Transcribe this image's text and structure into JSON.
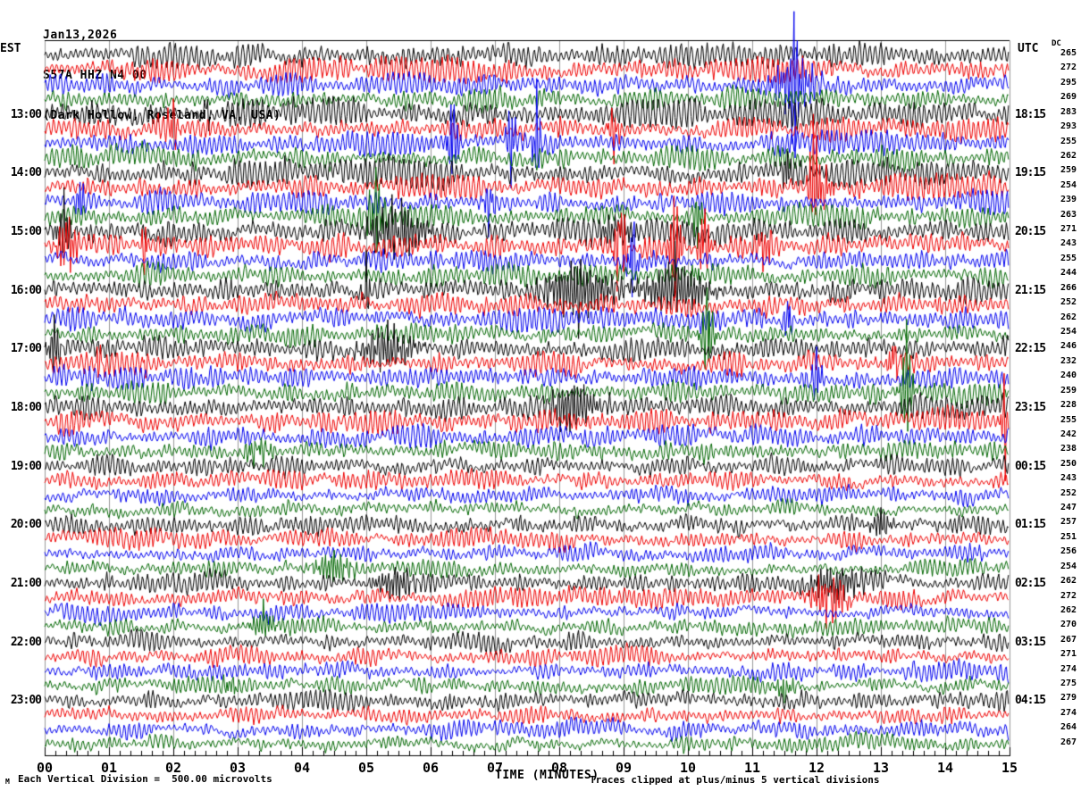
{
  "header": {
    "date": "Jan13,2026",
    "station": "S57A HHZ N4 00",
    "location": "(Dark Hollow, Roseland, VA, USA)"
  },
  "axes": {
    "left_label": "EST",
    "right_label": "UTC",
    "dc_label": "DC",
    "x_title": "TIME (MINUTES)",
    "x_ticks": [
      "00",
      "01",
      "02",
      "03",
      "04",
      "05",
      "06",
      "07",
      "08",
      "09",
      "10",
      "11",
      "12",
      "13",
      "14",
      "15"
    ],
    "left_times": [
      {
        "row": 5,
        "label": "13:00"
      },
      {
        "row": 9,
        "label": "14:00"
      },
      {
        "row": 13,
        "label": "15:00"
      },
      {
        "row": 17,
        "label": "16:00"
      },
      {
        "row": 21,
        "label": "17:00"
      },
      {
        "row": 25,
        "label": "18:00"
      },
      {
        "row": 29,
        "label": "19:00"
      },
      {
        "row": 33,
        "label": "20:00"
      },
      {
        "row": 37,
        "label": "21:00"
      },
      {
        "row": 41,
        "label": "22:00"
      },
      {
        "row": 45,
        "label": "23:00"
      }
    ],
    "right_times": [
      {
        "row": 5,
        "label": "18:15"
      },
      {
        "row": 9,
        "label": "19:15"
      },
      {
        "row": 13,
        "label": "20:15"
      },
      {
        "row": 17,
        "label": "21:15"
      },
      {
        "row": 21,
        "label": "22:15"
      },
      {
        "row": 25,
        "label": "23:15"
      },
      {
        "row": 29,
        "label": "00:15"
      },
      {
        "row": 33,
        "label": "01:15"
      },
      {
        "row": 37,
        "label": "02:15"
      },
      {
        "row": 41,
        "label": "03:15"
      },
      {
        "row": 45,
        "label": "04:15"
      }
    ]
  },
  "footer": {
    "left": "Each Vertical Division =  500.00 microvolts",
    "right": "Traces clipped at plus/minus 5 vertical divisions",
    "mark": "M"
  },
  "chart_data": {
    "type": "line",
    "kind": "seismogram-helicorder",
    "title": "S57A HHZ N4 00 (Dark Hollow, Roseland, VA, USA) Jan13,2026",
    "xlabel": "TIME (MINUTES)",
    "xlim": [
      0,
      15
    ],
    "minutes_per_line": 15,
    "num_rows": 48,
    "minor_ticks_per_minute": 6,
    "grid": "vertical lines at each minute",
    "clip_divisions": 5,
    "vertical_division_microvolts": 500.0,
    "colors_cycle": [
      "#000000",
      "#ee0000",
      "#0000ee",
      "#006600"
    ],
    "dc_values": [
      265,
      272,
      295,
      269,
      283,
      293,
      255,
      262,
      259,
      254,
      239,
      263,
      271,
      243,
      255,
      244,
      266,
      252,
      262,
      254,
      246,
      232,
      240,
      259,
      228,
      255,
      242,
      238,
      250,
      243,
      252,
      247,
      257,
      251,
      256,
      254,
      262,
      272,
      262,
      270,
      267,
      271,
      274,
      275,
      279,
      274,
      264,
      267
    ],
    "events": [
      {
        "row": 3,
        "min": 11.65,
        "amp": 85,
        "w": 0.05
      },
      {
        "row": 3,
        "min": 11.65,
        "amp": 26,
        "w": 0.35
      },
      {
        "row": 5,
        "min": 2.5,
        "amp": 26,
        "w": 0.06
      },
      {
        "row": 6,
        "min": 2.0,
        "amp": 22,
        "w": 0.08
      },
      {
        "row": 6,
        "min": 8.85,
        "amp": 18,
        "w": 0.1
      },
      {
        "row": 7,
        "min": 6.35,
        "amp": 50,
        "w": 0.08
      },
      {
        "row": 7,
        "min": 7.25,
        "amp": 34,
        "w": 0.07
      },
      {
        "row": 7,
        "min": 7.65,
        "amp": 38,
        "w": 0.07
      },
      {
        "row": 9,
        "min": 11.55,
        "amp": 16,
        "w": 0.1
      },
      {
        "row": 10,
        "min": 11.95,
        "amp": 62,
        "w": 0.07
      },
      {
        "row": 10,
        "min": 12.1,
        "amp": 24,
        "w": 0.12
      },
      {
        "row": 11,
        "min": 0.55,
        "amp": 16,
        "w": 0.08
      },
      {
        "row": 11,
        "min": 6.9,
        "amp": 16,
        "w": 0.1
      },
      {
        "row": 12,
        "min": 5.15,
        "amp": 32,
        "w": 0.15
      },
      {
        "row": 12,
        "min": 10.15,
        "amp": 22,
        "w": 0.08
      },
      {
        "row": 13,
        "min": 0.3,
        "amp": 26,
        "w": 0.12
      },
      {
        "row": 13,
        "min": 5.5,
        "amp": 30,
        "w": 0.4
      },
      {
        "row": 13,
        "min": 8.9,
        "amp": 18,
        "w": 0.3
      },
      {
        "row": 14,
        "min": 0.35,
        "amp": 34,
        "w": 0.15
      },
      {
        "row": 14,
        "min": 1.55,
        "amp": 26,
        "w": 0.04
      },
      {
        "row": 14,
        "min": 8.95,
        "amp": 56,
        "w": 0.09
      },
      {
        "row": 14,
        "min": 9.8,
        "amp": 56,
        "w": 0.09
      },
      {
        "row": 14,
        "min": 10.25,
        "amp": 44,
        "w": 0.09
      },
      {
        "row": 14,
        "min": 11.2,
        "amp": 28,
        "w": 0.1
      },
      {
        "row": 15,
        "min": 9.15,
        "amp": 40,
        "w": 0.07
      },
      {
        "row": 16,
        "min": 10.1,
        "amp": 18,
        "w": 0.08
      },
      {
        "row": 17,
        "min": 5.0,
        "amp": 20,
        "w": 0.08
      },
      {
        "row": 17,
        "min": 8.3,
        "amp": 30,
        "w": 0.5
      },
      {
        "row": 17,
        "min": 9.8,
        "amp": 26,
        "w": 0.5
      },
      {
        "row": 19,
        "min": 11.55,
        "amp": 16,
        "w": 0.08
      },
      {
        "row": 20,
        "min": 10.3,
        "amp": 40,
        "w": 0.1
      },
      {
        "row": 21,
        "min": 0.15,
        "amp": 24,
        "w": 0.1
      },
      {
        "row": 21,
        "min": 5.35,
        "amp": 22,
        "w": 0.4
      },
      {
        "row": 22,
        "min": 0.85,
        "amp": 18,
        "w": 0.06
      },
      {
        "row": 22,
        "min": 1.55,
        "amp": 16,
        "w": 0.06
      },
      {
        "row": 22,
        "min": 13.2,
        "amp": 36,
        "w": 0.06
      },
      {
        "row": 23,
        "min": 12.0,
        "amp": 24,
        "w": 0.08
      },
      {
        "row": 24,
        "min": 13.4,
        "amp": 50,
        "w": 0.1
      },
      {
        "row": 25,
        "min": 8.2,
        "amp": 26,
        "w": 0.35
      },
      {
        "row": 26,
        "min": 14.93,
        "amp": 30,
        "w": 0.07
      },
      {
        "row": 28,
        "min": 3.3,
        "amp": 14,
        "w": 0.2
      },
      {
        "row": 33,
        "min": 13.0,
        "amp": 12,
        "w": 0.2
      },
      {
        "row": 36,
        "min": 4.5,
        "amp": 14,
        "w": 0.3
      },
      {
        "row": 37,
        "min": 5.45,
        "amp": 16,
        "w": 0.3
      },
      {
        "row": 37,
        "min": 12.3,
        "amp": 18,
        "w": 0.4
      },
      {
        "row": 38,
        "min": 12.2,
        "amp": 28,
        "w": 0.25
      },
      {
        "row": 40,
        "min": 3.4,
        "amp": 14,
        "w": 0.2
      },
      {
        "row": 44,
        "min": 2.9,
        "amp": 14,
        "w": 0.1
      },
      {
        "row": 44,
        "min": 11.5,
        "amp": 12,
        "w": 0.15
      }
    ],
    "style": {
      "grid_color": "#999999",
      "frame_color": "#000000",
      "background": "#ffffff"
    }
  }
}
